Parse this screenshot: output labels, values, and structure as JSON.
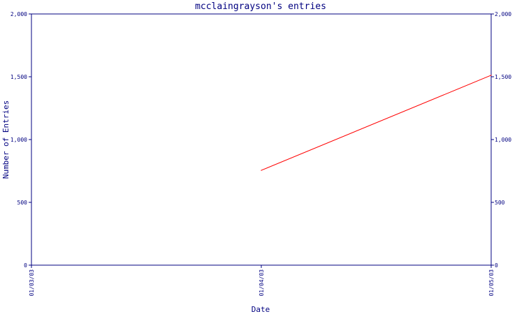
{
  "chart_data": {
    "type": "line",
    "title": "mcclaingrayson's entries",
    "xlabel": "Date",
    "ylabel": "Number of Entries",
    "x_categories": [
      "01/03/03",
      "01/04/03",
      "01/05/03"
    ],
    "y_ticks": [
      {
        "value": 0,
        "label": "0"
      },
      {
        "value": 500,
        "label": "500"
      },
      {
        "value": 1000,
        "label": "1,000"
      },
      {
        "value": 1500,
        "label": "1,500"
      },
      {
        "value": 2000,
        "label": "2,000"
      }
    ],
    "ylim": [
      0,
      2000
    ],
    "grid": false,
    "series": [
      {
        "color": "#ff0000",
        "points": [
          {
            "x": "01/04/03",
            "y": 755
          },
          {
            "x": "01/05/03",
            "y": 1512
          }
        ]
      }
    ],
    "colors": {
      "axis": "#000080",
      "text": "#000080",
      "line": "#ff0000"
    }
  }
}
